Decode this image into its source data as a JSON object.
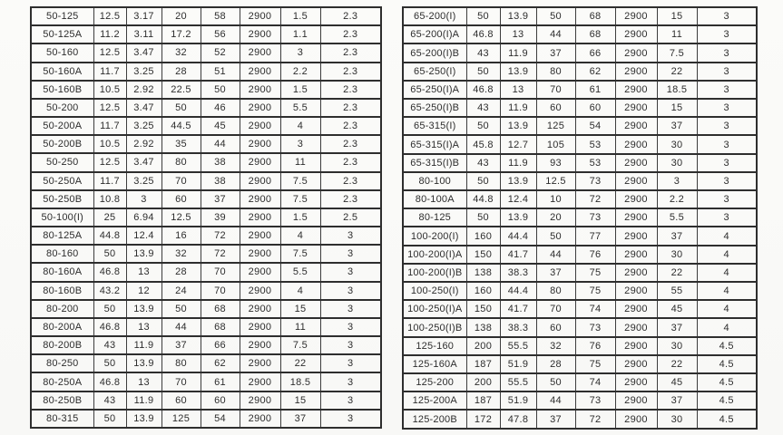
{
  "left_table": {
    "rows": [
      [
        "50-125",
        "12.5",
        "3.17",
        "20",
        "58",
        "2900",
        "1.5",
        "2.3"
      ],
      [
        "50-125A",
        "11.2",
        "3.11",
        "17.2",
        "56",
        "2900",
        "1.1",
        "2.3"
      ],
      [
        "50-160",
        "12.5",
        "3.47",
        "32",
        "52",
        "2900",
        "3",
        "2.3"
      ],
      [
        "50-160A",
        "11.7",
        "3.25",
        "28",
        "51",
        "2900",
        "2.2",
        "2.3"
      ],
      [
        "50-160B",
        "10.5",
        "2.92",
        "22.5",
        "50",
        "2900",
        "1.5",
        "2.3"
      ],
      [
        "50-200",
        "12.5",
        "3.47",
        "50",
        "46",
        "2900",
        "5.5",
        "2.3"
      ],
      [
        "50-200A",
        "11.7",
        "3.25",
        "44.5",
        "45",
        "2900",
        "4",
        "2.3"
      ],
      [
        "50-200B",
        "10.5",
        "2.92",
        "35",
        "44",
        "2900",
        "3",
        "2.3"
      ],
      [
        "50-250",
        "12.5",
        "3.47",
        "80",
        "38",
        "2900",
        "11",
        "2.3"
      ],
      [
        "50-250A",
        "11.7",
        "3.25",
        "70",
        "38",
        "2900",
        "7.5",
        "2.3"
      ],
      [
        "50-250B",
        "10.8",
        "3",
        "60",
        "37",
        "2900",
        "7.5",
        "2.3"
      ],
      [
        "50-100(I)",
        "25",
        "6.94",
        "12.5",
        "39",
        "2900",
        "1.5",
        "2.5"
      ],
      [
        "80-125A",
        "44.8",
        "12.4",
        "16",
        "72",
        "2900",
        "4",
        "3"
      ],
      [
        "80-160",
        "50",
        "13.9",
        "32",
        "72",
        "2900",
        "7.5",
        "3"
      ],
      [
        "80-160A",
        "46.8",
        "13",
        "28",
        "70",
        "2900",
        "5.5",
        "3"
      ],
      [
        "80-160B",
        "43.2",
        "12",
        "24",
        "70",
        "2900",
        "4",
        "3"
      ],
      [
        "80-200",
        "50",
        "13.9",
        "50",
        "68",
        "2900",
        "15",
        "3"
      ],
      [
        "80-200A",
        "46.8",
        "13",
        "44",
        "68",
        "2900",
        "11",
        "3"
      ],
      [
        "80-200B",
        "43",
        "11.9",
        "37",
        "66",
        "2900",
        "7.5",
        "3"
      ],
      [
        "80-250",
        "50",
        "13.9",
        "80",
        "62",
        "2900",
        "22",
        "3"
      ],
      [
        "80-250A",
        "46.8",
        "13",
        "70",
        "61",
        "2900",
        "18.5",
        "3"
      ],
      [
        "80-250B",
        "43",
        "11.9",
        "60",
        "60",
        "2900",
        "15",
        "3"
      ],
      [
        "80-315",
        "50",
        "13.9",
        "125",
        "54",
        "2900",
        "37",
        "3"
      ]
    ]
  },
  "right_table": {
    "rows": [
      [
        "65-200(I)",
        "50",
        "13.9",
        "50",
        "68",
        "2900",
        "15",
        "3"
      ],
      [
        "65-200(I)A",
        "46.8",
        "13",
        "44",
        "68",
        "2900",
        "11",
        "3"
      ],
      [
        "65-200(I)B",
        "43",
        "11.9",
        "37",
        "66",
        "2900",
        "7.5",
        "3"
      ],
      [
        "65-250(I)",
        "50",
        "13.9",
        "80",
        "62",
        "2900",
        "22",
        "3"
      ],
      [
        "65-250(I)A",
        "46.8",
        "13",
        "70",
        "61",
        "2900",
        "18.5",
        "3"
      ],
      [
        "65-250(I)B",
        "43",
        "11.9",
        "60",
        "60",
        "2900",
        "15",
        "3"
      ],
      [
        "65-315(I)",
        "50",
        "13.9",
        "125",
        "54",
        "2900",
        "37",
        "3"
      ],
      [
        "65-315(I)A",
        "45.8",
        "12.7",
        "105",
        "53",
        "2900",
        "30",
        "3"
      ],
      [
        "65-315(I)B",
        "43",
        "11.9",
        "93",
        "53",
        "2900",
        "30",
        "3"
      ],
      [
        "80-100",
        "50",
        "13.9",
        "12.5",
        "73",
        "2900",
        "3",
        "3"
      ],
      [
        "80-100A",
        "44.8",
        "12.4",
        "10",
        "72",
        "2900",
        "2.2",
        "3"
      ],
      [
        "80-125",
        "50",
        "13.9",
        "20",
        "73",
        "2900",
        "5.5",
        "3"
      ],
      [
        "100-200(I)",
        "160",
        "44.4",
        "50",
        "77",
        "2900",
        "37",
        "4"
      ],
      [
        "100-200(I)A",
        "150",
        "41.7",
        "44",
        "76",
        "2900",
        "30",
        "4"
      ],
      [
        "100-200(I)B",
        "138",
        "38.3",
        "37",
        "75",
        "2900",
        "22",
        "4"
      ],
      [
        "100-250(I)",
        "160",
        "44.4",
        "80",
        "75",
        "2900",
        "55",
        "4"
      ],
      [
        "100-250(I)A",
        "150",
        "41.7",
        "70",
        "74",
        "2900",
        "45",
        "4"
      ],
      [
        "100-250(I)B",
        "138",
        "38.3",
        "60",
        "73",
        "2900",
        "37",
        "4"
      ],
      [
        "125-160",
        "200",
        "55.5",
        "32",
        "76",
        "2900",
        "30",
        "4.5"
      ],
      [
        "125-160A",
        "187",
        "51.9",
        "28",
        "75",
        "2900",
        "22",
        "4.5"
      ],
      [
        "125-200",
        "200",
        "55.5",
        "50",
        "74",
        "2900",
        "45",
        "4.5"
      ],
      [
        "125-200A",
        "187",
        "51.9",
        "44",
        "73",
        "2900",
        "37",
        "4.5"
      ],
      [
        "125-200B",
        "172",
        "47.8",
        "37",
        "72",
        "2900",
        "30",
        "4.5"
      ]
    ]
  }
}
